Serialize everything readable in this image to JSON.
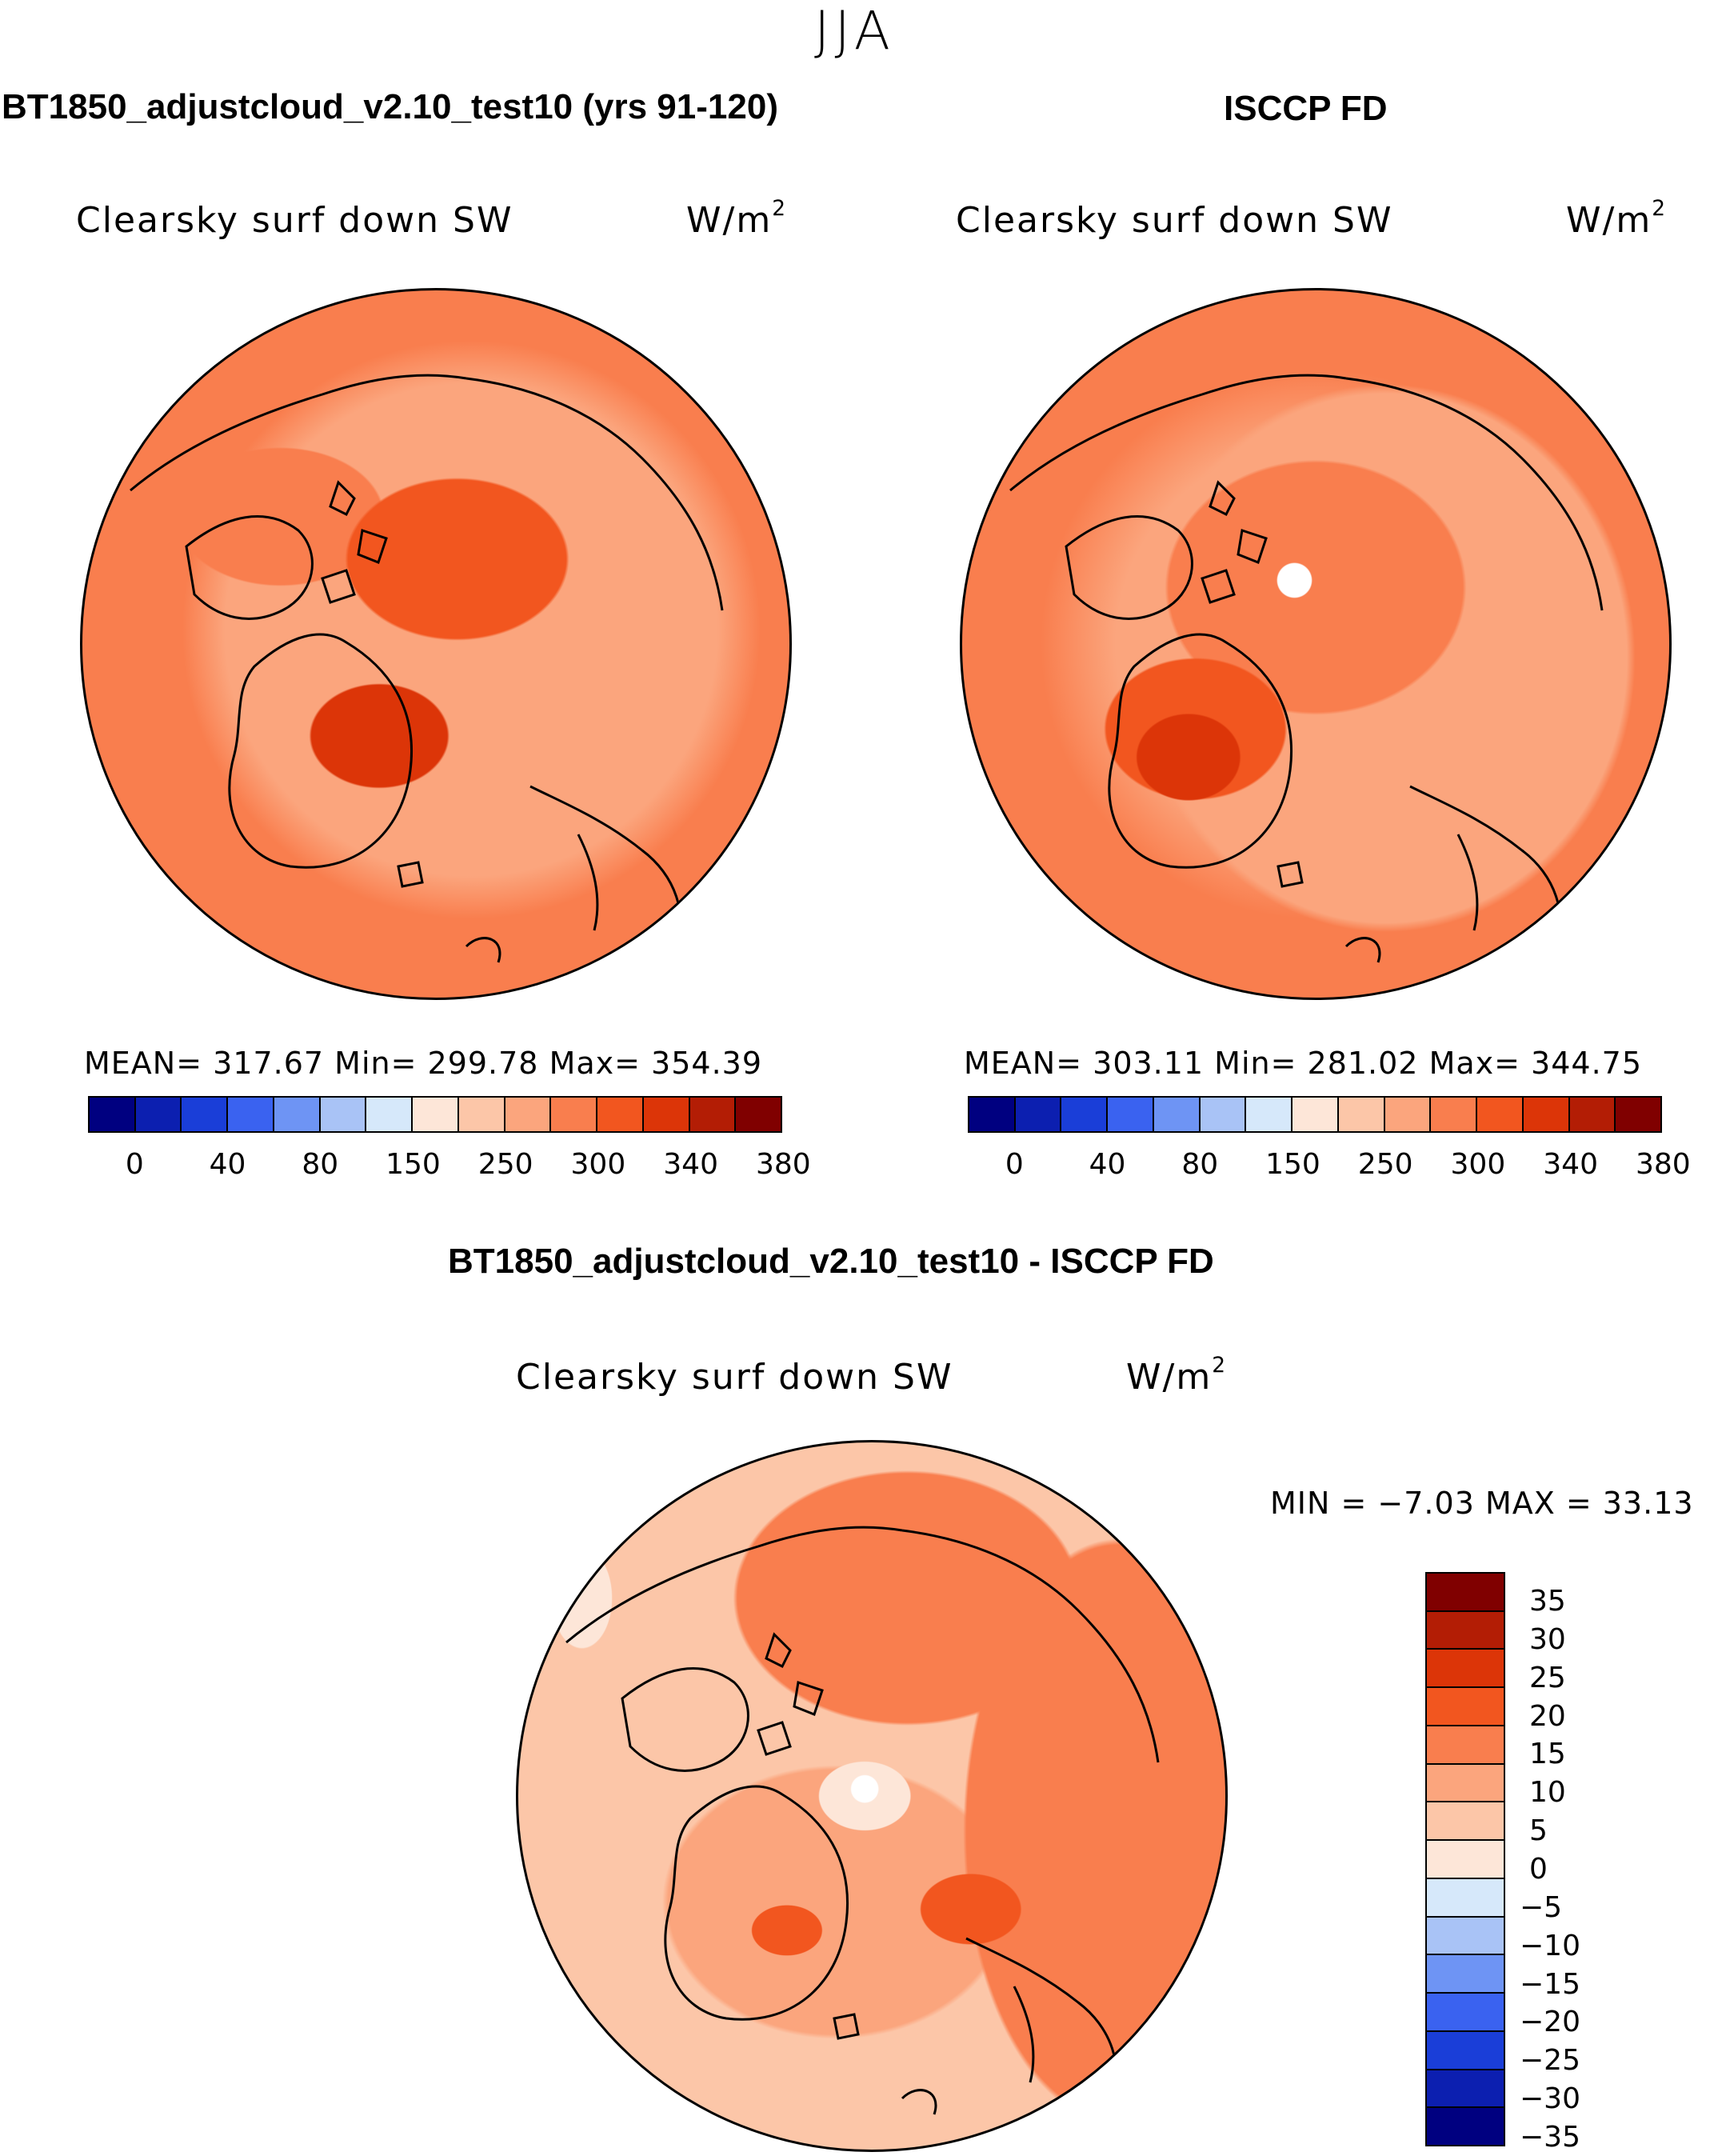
{
  "season": "JJA",
  "panels": [
    {
      "title": "BT1850_adjustcloud_v2.10_test10 (yrs 91-120)",
      "variable": "Clearsky surf down SW",
      "units": "W/m",
      "units_exp": "2",
      "stats": "MEAN= 317.67   Min= 299.78   Max= 354.39"
    },
    {
      "title": "ISCCP FD",
      "variable": "Clearsky surf down SW",
      "units": "W/m",
      "units_exp": "2",
      "stats": "MEAN= 303.11   Min= 281.02   Max= 344.75"
    }
  ],
  "diff": {
    "title": "BT1850_adjustcloud_v2.10_test10 - ISCCP FD",
    "variable": "Clearsky surf down SW",
    "units": "W/m",
    "units_exp": "2",
    "stats": "MIN =   −7.03 MAX =   33.13"
  },
  "colors": {
    "abs_scale": [
      "#000080",
      "#0c1fb0",
      "#1a3ed8",
      "#3a62f0",
      "#6e94f4",
      "#a9c3f6",
      "#d6e8fa",
      "#fde6d8",
      "#fcc6a8",
      "#fba57d",
      "#f97e4e",
      "#f2561f",
      "#dc3508",
      "#b31d05",
      "#800000"
    ],
    "diff_scale": [
      "#800000",
      "#b31d05",
      "#dc3508",
      "#f2561f",
      "#f97e4e",
      "#fba57d",
      "#fcc6a8",
      "#fde6d8",
      "#d6e8fa",
      "#a9c3f6",
      "#6e94f4",
      "#3a62f0",
      "#1a3ed8",
      "#0c1fb0",
      "#000080"
    ],
    "land_outline": "#000000"
  },
  "chart_data": [
    {
      "type": "heatmap",
      "title": "BT1850_adjustcloud_v2.10_test10 (yrs 91-120)",
      "projection": "north polar stereographic",
      "variable": "Clearsky surf down SW",
      "units": "W/m^2",
      "mean": 317.67,
      "min": 299.78,
      "max": 354.39,
      "levels": [
        0,
        20,
        40,
        60,
        80,
        100,
        150,
        200,
        250,
        275,
        300,
        320,
        340,
        360,
        380
      ],
      "tick_labels": [
        "0",
        "40",
        "80",
        "150",
        "250",
        "300",
        "340",
        "380"
      ]
    },
    {
      "type": "heatmap",
      "title": "ISCCP FD",
      "projection": "north polar stereographic",
      "variable": "Clearsky surf down SW",
      "units": "W/m^2",
      "mean": 303.11,
      "min": 281.02,
      "max": 344.75,
      "levels": [
        0,
        20,
        40,
        60,
        80,
        100,
        150,
        200,
        250,
        275,
        300,
        320,
        340,
        360,
        380
      ],
      "tick_labels": [
        "0",
        "40",
        "80",
        "150",
        "250",
        "300",
        "340",
        "380"
      ]
    },
    {
      "type": "heatmap",
      "title": "BT1850_adjustcloud_v2.10_test10 - ISCCP FD",
      "projection": "north polar stereographic",
      "variable": "Clearsky surf down SW",
      "units": "W/m^2",
      "min": -7.03,
      "max": 33.13,
      "tick_labels": [
        "35",
        "30",
        "25",
        "20",
        "15",
        "10",
        "5",
        "0",
        "−5",
        "−10",
        "−15",
        "−20",
        "−25",
        "−30",
        "−35"
      ]
    }
  ]
}
